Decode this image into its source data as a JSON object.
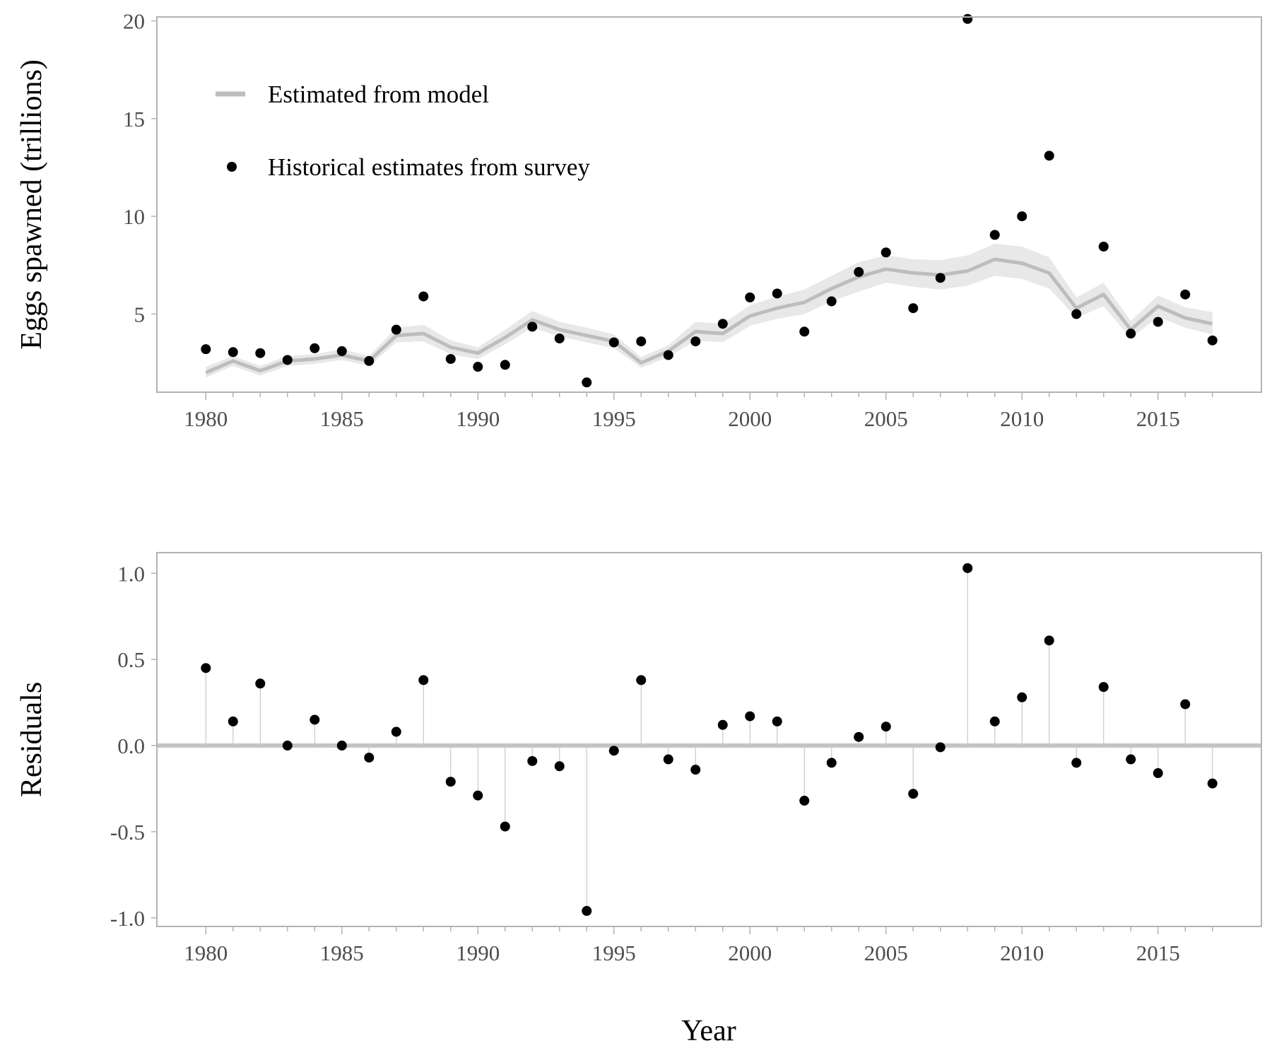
{
  "colors": {
    "model_line": "#bdbdbd",
    "ribbon": "#e8e8e8",
    "points": "#000000",
    "panel_border": "#b3b3b3",
    "zero_line": "#c4c4c4",
    "stem": "#c8c8c8",
    "tick_text": "#4d4d4d"
  },
  "xlabel": "Year",
  "chart_data": [
    {
      "type": "line",
      "ylabel": "Eggs spawned (trillions)",
      "xlim": [
        1978.2,
        2018.8
      ],
      "ylim": [
        1.0,
        20.2
      ],
      "x_ticks": [
        1980,
        1985,
        1990,
        1995,
        2000,
        2005,
        2010,
        2015
      ],
      "y_ticks": [
        5,
        10,
        15,
        20
      ],
      "grid": false,
      "legend_position": "top-left",
      "legend": {
        "line_label": "Estimated from model",
        "point_label": "Historical estimates from survey"
      },
      "x": [
        1980,
        1981,
        1982,
        1983,
        1984,
        1985,
        1986,
        1987,
        1988,
        1989,
        1990,
        1991,
        1992,
        1993,
        1994,
        1995,
        1996,
        1997,
        1998,
        1999,
        2000,
        2001,
        2002,
        2003,
        2004,
        2005,
        2006,
        2007,
        2008,
        2009,
        2010,
        2011,
        2012,
        2013,
        2014,
        2015,
        2016,
        2017
      ],
      "series": [
        {
          "name": "Estimated from model",
          "kind": "line",
          "values": [
            2.0,
            2.6,
            2.1,
            2.6,
            2.7,
            2.9,
            2.6,
            3.9,
            4.0,
            3.3,
            3.0,
            3.8,
            4.7,
            4.2,
            3.9,
            3.6,
            2.5,
            3.1,
            4.1,
            4.0,
            4.9,
            5.3,
            5.6,
            6.3,
            6.9,
            7.3,
            7.1,
            7.0,
            7.2,
            7.8,
            7.6,
            7.1,
            5.3,
            6.0,
            4.2,
            5.4,
            4.8,
            4.5
          ],
          "lower": [
            1.75,
            2.35,
            1.85,
            2.35,
            2.45,
            2.65,
            2.35,
            3.55,
            3.6,
            2.95,
            2.7,
            3.45,
            4.3,
            3.85,
            3.55,
            3.25,
            2.25,
            2.8,
            3.65,
            3.55,
            4.4,
            4.75,
            5.0,
            5.65,
            6.15,
            6.6,
            6.4,
            6.25,
            6.45,
            6.95,
            6.8,
            6.3,
            4.8,
            5.4,
            3.75,
            4.85,
            4.3,
            3.95
          ],
          "upper": [
            2.3,
            2.85,
            2.35,
            2.85,
            2.95,
            3.2,
            2.85,
            4.3,
            4.45,
            3.65,
            3.3,
            4.2,
            5.15,
            4.6,
            4.3,
            3.95,
            2.8,
            3.4,
            4.6,
            4.5,
            5.45,
            5.9,
            6.25,
            6.95,
            7.65,
            8.0,
            7.8,
            7.75,
            8.0,
            8.6,
            8.45,
            7.9,
            5.85,
            6.6,
            4.65,
            5.95,
            5.35,
            5.1
          ]
        },
        {
          "name": "Historical estimates from survey",
          "kind": "scatter",
          "values": [
            3.2,
            3.05,
            3.0,
            2.65,
            3.25,
            3.1,
            2.6,
            4.2,
            5.9,
            2.7,
            2.3,
            2.4,
            4.35,
            3.75,
            1.5,
            3.55,
            3.6,
            2.9,
            3.6,
            4.5,
            5.85,
            6.05,
            4.1,
            5.65,
            7.15,
            8.15,
            5.3,
            6.85,
            20.1,
            9.05,
            10.0,
            13.1,
            5.0,
            8.45,
            4.0,
            4.6,
            6.0,
            3.65
          ]
        }
      ]
    },
    {
      "type": "scatter",
      "ylabel": "Residuals",
      "xlim": [
        1978.2,
        2018.8
      ],
      "ylim": [
        -1.05,
        1.12
      ],
      "x_ticks": [
        1980,
        1985,
        1990,
        1995,
        2000,
        2005,
        2010,
        2015
      ],
      "y_ticks": [
        -1.0,
        -0.5,
        0.0,
        0.5,
        1.0
      ],
      "y_tick_labels": [
        "-1.0",
        "-0.5",
        "0.0",
        "0.5",
        "1.0"
      ],
      "grid": false,
      "reference_line": 0.0,
      "x": [
        1980,
        1981,
        1982,
        1983,
        1984,
        1985,
        1986,
        1987,
        1988,
        1989,
        1990,
        1991,
        1992,
        1993,
        1994,
        1995,
        1996,
        1997,
        1998,
        1999,
        2000,
        2001,
        2002,
        2003,
        2004,
        2005,
        2006,
        2007,
        2008,
        2009,
        2010,
        2011,
        2012,
        2013,
        2014,
        2015,
        2016,
        2017
      ],
      "values": [
        0.45,
        0.14,
        0.36,
        0.0,
        0.15,
        0.0,
        -0.07,
        0.08,
        0.38,
        -0.21,
        -0.29,
        -0.47,
        -0.09,
        -0.12,
        -0.96,
        -0.03,
        0.38,
        -0.08,
        -0.14,
        0.12,
        0.17,
        0.14,
        -0.32,
        -0.1,
        0.05,
        0.11,
        -0.28,
        -0.01,
        1.03,
        0.14,
        0.28,
        0.61,
        -0.1,
        0.34,
        -0.08,
        -0.16,
        0.24,
        -0.22
      ]
    }
  ]
}
